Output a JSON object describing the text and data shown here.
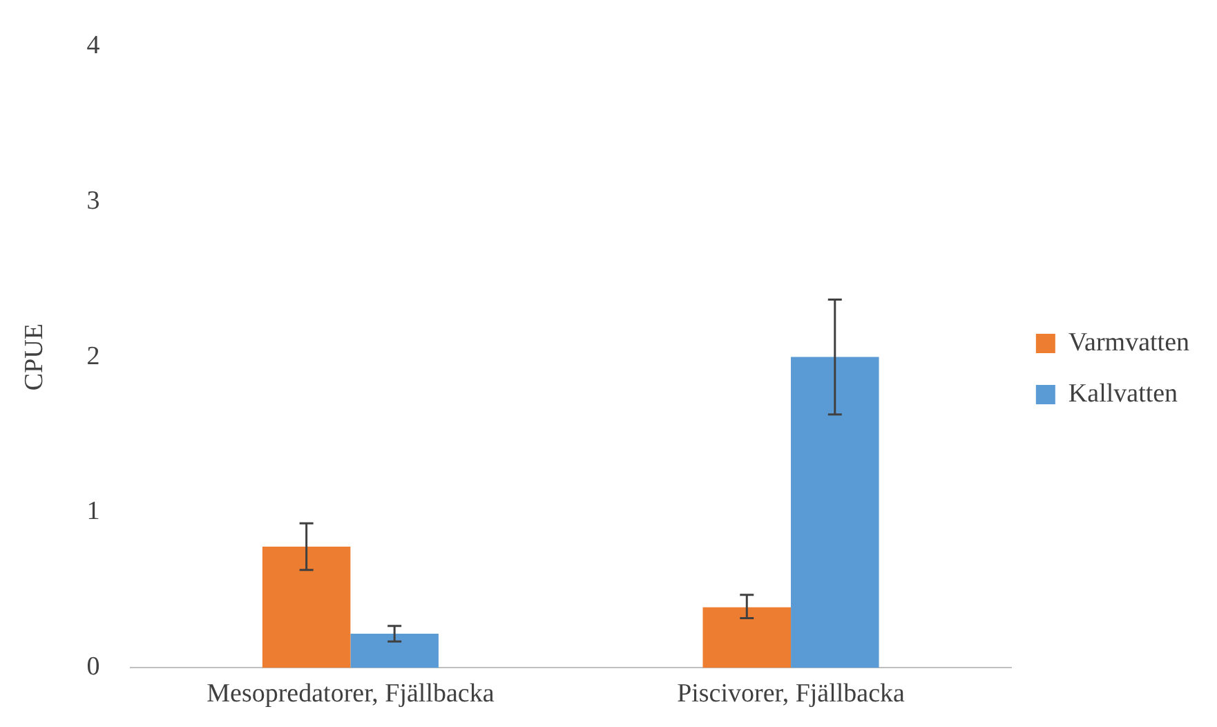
{
  "chart_data": {
    "type": "bar",
    "ylabel": "CPUE",
    "categories": [
      "Mesopredatorer, Fjällbacka",
      "Piscivorer, Fjällbacka"
    ],
    "series": [
      {
        "name": "Varmvatten",
        "color": "#ed7d31",
        "values": [
          0.78,
          0.39
        ],
        "errors": [
          [
            0.63,
            0.93
          ],
          [
            0.32,
            0.47
          ]
        ]
      },
      {
        "name": "Kallvatten",
        "color": "#5b9bd5",
        "values": [
          0.22,
          2.0
        ],
        "errors": [
          [
            0.17,
            0.27
          ],
          [
            1.63,
            2.37
          ]
        ]
      }
    ],
    "ylim": [
      0,
      4
    ],
    "yticks": [
      0,
      1,
      2,
      3,
      4
    ],
    "grid": false,
    "legend": "right"
  }
}
